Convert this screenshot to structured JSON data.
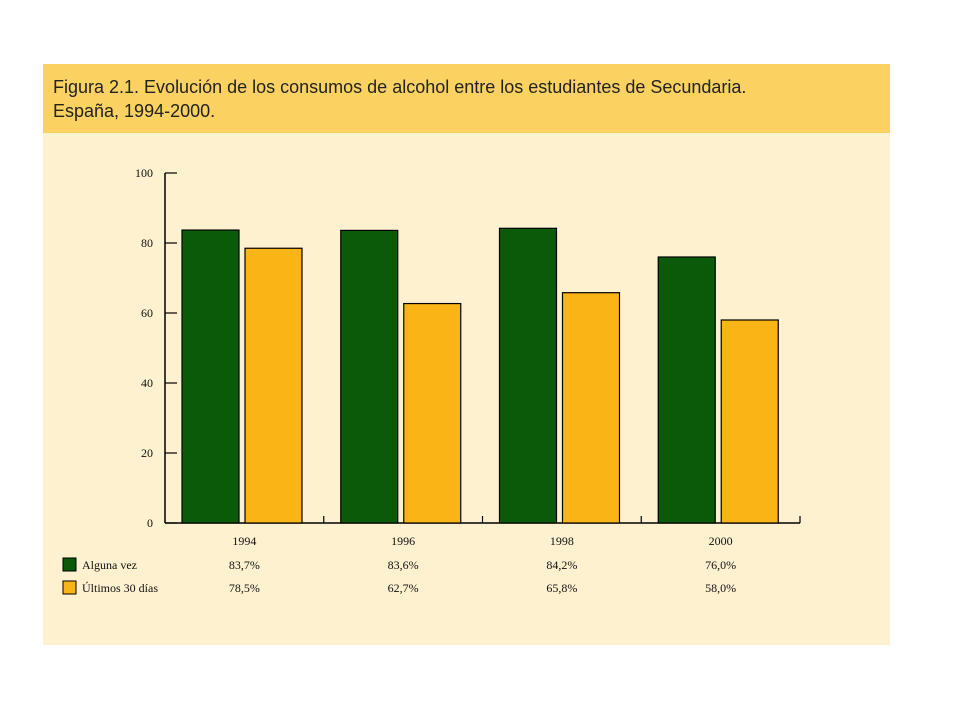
{
  "header": {
    "title_line_1": "Figura 2.1. Evolución de los consumos de alcohol entre los estudiantes de Secundaria.",
    "title_line_2": "España, 1994-2000."
  },
  "colors": {
    "panel_bg": "#fef1cf",
    "header_bg": "#fbd262",
    "series_1": "#0a5a0a",
    "series_2": "#fbb416"
  },
  "chart_data": {
    "type": "bar",
    "title": "Figura 2.1. Evolución de los consumos de alcohol entre los estudiantes de Secundaria. España, 1994-2000.",
    "categories": [
      "1994",
      "1996",
      "1998",
      "2000"
    ],
    "ylim": [
      0,
      100
    ],
    "yticks": [
      0,
      20,
      40,
      60,
      80,
      100
    ],
    "grid": false,
    "legend": "bottom-table",
    "series": [
      {
        "name": "Alguna vez",
        "values": [
          83.7,
          83.6,
          84.2,
          76.0
        ],
        "labels": [
          "83,7%",
          "83,6%",
          "84,2%",
          "76,0%"
        ],
        "color": "#0a5a0a"
      },
      {
        "name": "Últimos 30 días",
        "values": [
          78.5,
          62.7,
          65.8,
          58.0
        ],
        "labels": [
          "78,5%",
          "62,7%",
          "65,8%",
          "58,0%"
        ],
        "color": "#fbb416"
      }
    ]
  }
}
